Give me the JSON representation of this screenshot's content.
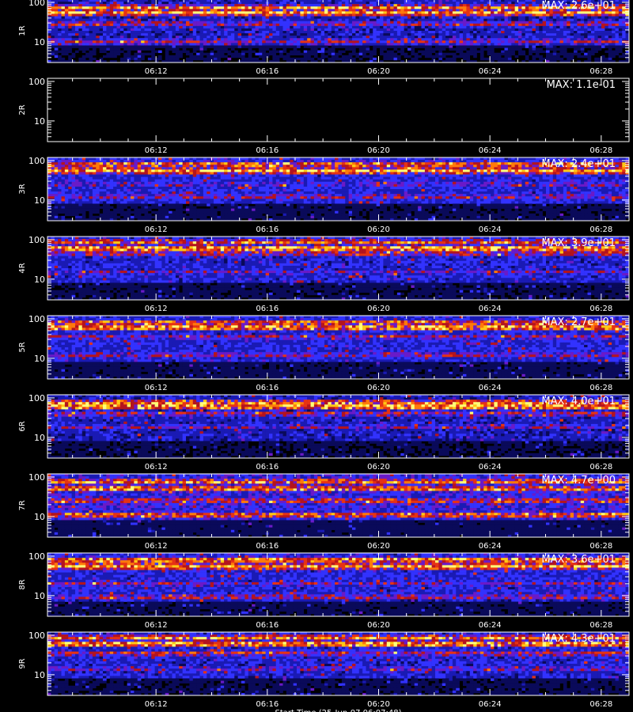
{
  "chart_data": {
    "type": "heatmap",
    "x_tick_labels": [
      "06:12",
      "06:16",
      "06:20",
      "06:24",
      "06:28"
    ],
    "x_ticks_minutes": [
      12,
      16,
      20,
      24,
      28
    ],
    "xlim_minutes": [
      8.1,
      29.0
    ],
    "y_tick_labels": [
      "100",
      "10"
    ],
    "y_ticks": [
      100,
      10
    ],
    "ylim": [
      3,
      120
    ],
    "y_scale": "log",
    "bottom_axis_label": "Start Time (25-Jun-07 06:07:48)",
    "colormap": [
      "#000000",
      "#0a0a5a",
      "#1a1ab4",
      "#3232ff",
      "#6a1ac8",
      "#b4141e",
      "#e63214",
      "#ff7a0a",
      "#ffc814",
      "#ffff78"
    ],
    "panels": [
      {
        "name": "1R",
        "max_label": "MAX: 2.6e+01",
        "band_centers": [
          10,
          28,
          55,
          72
        ],
        "band_strengths": [
          0.55,
          0.55,
          0.95,
          0.85
        ],
        "noise_floor": 0.25
      },
      {
        "name": "2R",
        "max_label": "MAX: 1.1e-01",
        "band_centers": [],
        "band_strengths": [],
        "noise_floor": 0.0
      },
      {
        "name": "3R",
        "max_label": "MAX: 2.4e+01",
        "band_centers": [
          12,
          25,
          55,
          80
        ],
        "band_strengths": [
          0.5,
          0.45,
          0.95,
          0.8
        ],
        "noise_floor": 0.3
      },
      {
        "name": "4R",
        "max_label": "MAX: 3.9e+01",
        "band_centers": [
          15,
          45,
          60,
          85
        ],
        "band_strengths": [
          0.45,
          0.6,
          0.9,
          0.75
        ],
        "noise_floor": 0.28
      },
      {
        "name": "5R",
        "max_label": "MAX: 2.7e+01",
        "band_centers": [
          12,
          35,
          60,
          80
        ],
        "band_strengths": [
          0.5,
          0.5,
          0.9,
          0.75
        ],
        "noise_floor": 0.3
      },
      {
        "name": "6R",
        "max_label": "MAX: 4.0e+01",
        "band_centers": [
          18,
          40,
          60,
          75
        ],
        "band_strengths": [
          0.45,
          0.55,
          0.95,
          0.8
        ],
        "noise_floor": 0.25
      },
      {
        "name": "7R",
        "max_label": "MAX: 4.7e+00",
        "band_centers": [
          11,
          25,
          50,
          75
        ],
        "band_strengths": [
          0.75,
          0.65,
          0.8,
          0.8
        ],
        "noise_floor": 0.35
      },
      {
        "name": "8R",
        "max_label": "MAX: 3.6e+01",
        "band_centers": [
          9,
          20,
          55,
          80
        ],
        "band_strengths": [
          0.55,
          0.5,
          0.95,
          0.85
        ],
        "noise_floor": 0.3
      },
      {
        "name": "9R",
        "max_label": "MAX: 4.3e+01",
        "band_centers": [
          14,
          35,
          60,
          85
        ],
        "band_strengths": [
          0.45,
          0.6,
          0.9,
          0.8
        ],
        "noise_floor": 0.28
      }
    ]
  }
}
